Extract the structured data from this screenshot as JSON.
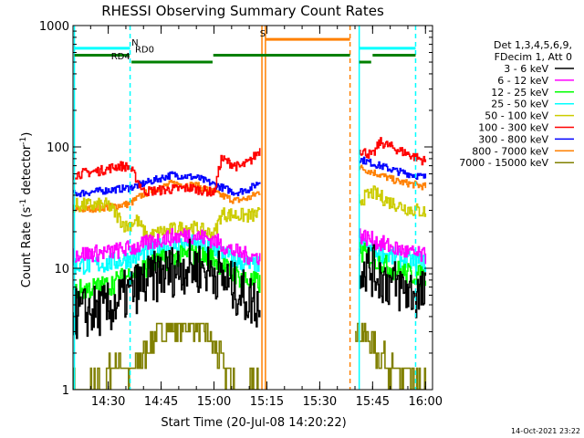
{
  "chart_data": {
    "type": "line",
    "title": "RHESSI Observing Summary Count Rates",
    "xlabel": "Start Time (20-Jul-08 14:20:22)",
    "ylabel_main": "Count Rate (s",
    "ylabel_sup1": "-1",
    "ylabel_mid": " detector",
    "ylabel_sup2": "-1",
    "ylabel_end": ")",
    "yscale": "log",
    "ylim": [
      1,
      1000
    ],
    "xlim_minutes": [
      860,
      962
    ],
    "x_tick_minutes": [
      870,
      885,
      900,
      915,
      930,
      945,
      960
    ],
    "x_tick_labels": [
      "14:30",
      "14:45",
      "15:00",
      "15:15",
      "15:30",
      "15:45",
      "16:00"
    ],
    "y_tick_values": [
      1,
      10,
      100,
      1000
    ],
    "y_tick_labels": [
      "1",
      "10",
      "100",
      "1000"
    ],
    "legend_header": [
      "Det 1,3,4,5,6,9,",
      "FDecim 1, Att 0"
    ],
    "timestamp": "14-Oct-2021 23:22",
    "series": [
      {
        "name": "3 - 6 keV",
        "color": "#000000",
        "seg1": [
          [
            860,
            4.2
          ],
          [
            870,
            4.6
          ],
          [
            878,
            7
          ],
          [
            885,
            9
          ],
          [
            893,
            10.5
          ],
          [
            900,
            9.5
          ],
          [
            905,
            7
          ],
          [
            910,
            5.5
          ],
          [
            913,
            5
          ]
        ],
        "seg2": [
          [
            941,
            11
          ],
          [
            945,
            9.5
          ],
          [
            950,
            7.5
          ],
          [
            955,
            6.5
          ],
          [
            960,
            5.8
          ]
        ]
      },
      {
        "name": "6 - 12 keV",
        "color": "#ff00ff",
        "seg1": [
          [
            860,
            13
          ],
          [
            870,
            13.5
          ],
          [
            878,
            15
          ],
          [
            885,
            17.5
          ],
          [
            893,
            19
          ],
          [
            900,
            17
          ],
          [
            905,
            14
          ],
          [
            910,
            12.5
          ],
          [
            913,
            12.5
          ]
        ],
        "seg2": [
          [
            941,
            19
          ],
          [
            945,
            17
          ],
          [
            950,
            15
          ],
          [
            955,
            13.5
          ],
          [
            960,
            12.5
          ]
        ]
      },
      {
        "name": "12 - 25 keV",
        "color": "#00ff00",
        "seg1": [
          [
            860,
            6.5
          ],
          [
            870,
            7.2
          ],
          [
            878,
            9.5
          ],
          [
            885,
            11.5
          ],
          [
            893,
            13
          ],
          [
            900,
            12
          ],
          [
            905,
            9
          ],
          [
            910,
            7.8
          ],
          [
            913,
            7.5
          ]
        ],
        "seg2": [
          [
            941,
            14
          ],
          [
            945,
            12
          ],
          [
            950,
            10
          ],
          [
            955,
            9
          ],
          [
            960,
            8.5
          ]
        ]
      },
      {
        "name": "25 - 50 keV",
        "color": "#00ffff",
        "seg1": [
          [
            860,
            10.5
          ],
          [
            870,
            11
          ],
          [
            878,
            12.5
          ],
          [
            885,
            15
          ],
          [
            893,
            16
          ],
          [
            900,
            14.5
          ],
          [
            905,
            12
          ],
          [
            910,
            10.5
          ],
          [
            913,
            10.5
          ]
        ],
        "seg2": [
          [
            941,
            16
          ],
          [
            945,
            14
          ],
          [
            950,
            12.5
          ],
          [
            955,
            11.5
          ],
          [
            960,
            11
          ]
        ]
      },
      {
        "name": "50 - 100 keV",
        "color": "#cccc00",
        "seg1": [
          [
            860,
            33
          ],
          [
            870,
            33
          ],
          [
            875,
            22
          ],
          [
            878,
            25
          ],
          [
            881,
            18
          ],
          [
            885,
            20
          ],
          [
            893,
            22
          ],
          [
            900,
            19
          ],
          [
            902,
            28
          ],
          [
            910,
            27
          ],
          [
            913,
            28
          ]
        ],
        "seg2": [
          [
            941,
            36
          ],
          [
            945,
            42
          ],
          [
            950,
            35
          ],
          [
            955,
            31
          ],
          [
            960,
            29
          ]
        ]
      },
      {
        "name": "100 - 300 keV",
        "color": "#ff0000",
        "seg1": [
          [
            860,
            59
          ],
          [
            868,
            64
          ],
          [
            873,
            70
          ],
          [
            876,
            68
          ],
          [
            880,
            43
          ],
          [
            885,
            44
          ],
          [
            893,
            46
          ],
          [
            900,
            42
          ],
          [
            902,
            80
          ],
          [
            907,
            68
          ],
          [
            910,
            75
          ],
          [
            913,
            95
          ]
        ],
        "seg2": [
          [
            941,
            95
          ],
          [
            945,
            85
          ],
          [
            947,
            110
          ],
          [
            952,
            95
          ],
          [
            960,
            76
          ]
        ]
      },
      {
        "name": "300 - 800 keV",
        "color": "#0000ff",
        "seg1": [
          [
            860,
            41
          ],
          [
            870,
            44
          ],
          [
            876,
            46
          ],
          [
            880,
            50
          ],
          [
            888,
            59
          ],
          [
            895,
            56
          ],
          [
            900,
            49
          ],
          [
            906,
            42
          ],
          [
            910,
            45
          ],
          [
            913,
            52
          ]
        ],
        "seg2": [
          [
            941,
            80
          ],
          [
            945,
            73
          ],
          [
            952,
            63
          ],
          [
            960,
            56
          ]
        ]
      },
      {
        "name": "800 - 7000 keV",
        "color": "#ff8000",
        "seg1": [
          [
            860,
            30
          ],
          [
            870,
            32
          ],
          [
            876,
            34
          ],
          [
            880,
            41
          ],
          [
            888,
            50
          ],
          [
            895,
            48
          ],
          [
            900,
            42
          ],
          [
            906,
            36
          ],
          [
            910,
            38
          ],
          [
            913,
            43
          ]
        ],
        "seg2": [
          [
            941,
            68
          ],
          [
            945,
            62
          ],
          [
            952,
            52
          ],
          [
            960,
            47
          ]
        ]
      },
      {
        "name": "7000 - 15000 keV",
        "color": "#808000",
        "seg1": [
          [
            860,
            1
          ],
          [
            869,
            1
          ],
          [
            870,
            1.5
          ],
          [
            874,
            1.7
          ],
          [
            876,
            1.3
          ],
          [
            880,
            2
          ],
          [
            884,
            3
          ],
          [
            888,
            3.3
          ],
          [
            893,
            3.6
          ],
          [
            897,
            3.2
          ],
          [
            900,
            2.2
          ],
          [
            903,
            1.5
          ],
          [
            907,
            1
          ],
          [
            913,
            1
          ]
        ],
        "seg2": [
          [
            940,
            3.5
          ],
          [
            944,
            2.5
          ],
          [
            948,
            1.8
          ],
          [
            952,
            1.3
          ],
          [
            956,
            1.1
          ],
          [
            960,
            1
          ]
        ]
      }
    ],
    "vertical_markers": [
      {
        "minute": 860.4,
        "color": "#00ffff",
        "style": "solid"
      },
      {
        "minute": 876.2,
        "color": "#00ffff",
        "style": "dashed"
      },
      {
        "minute": 913.6,
        "color": "#ff8000",
        "style": "solid"
      },
      {
        "minute": 914.6,
        "color": "#ff8000",
        "style": "solid"
      },
      {
        "minute": 938.6,
        "color": "#ff8000",
        "style": "dashed"
      },
      {
        "minute": 941.2,
        "color": "#00ffff",
        "style": "solid"
      },
      {
        "minute": 957.2,
        "color": "#00ffff",
        "style": "dashed"
      }
    ],
    "flag_bars": [
      {
        "label": "N",
        "color": "#00ffff",
        "level": 650,
        "segments": [
          [
            860.4,
            876.2
          ],
          [
            941.2,
            957.2
          ]
        ],
        "label_minute": 876.6
      },
      {
        "label": "S",
        "color": "#ff8000",
        "level": 770,
        "segments": [
          [
            914.6,
            938.6
          ]
        ],
        "label_minute": 913.0
      },
      {
        "label": "RD0",
        "color": "#008000",
        "level": 570,
        "segments": [
          [
            860.4,
            876.0
          ],
          [
            899.8,
            938.6
          ],
          [
            945,
            957.2
          ]
        ],
        "label_minute": 877.6
      },
      {
        "label": "RD4",
        "color": "#008000",
        "level": 500,
        "segments": [
          [
            876.6,
            899.6
          ],
          [
            941.2,
            944.6
          ]
        ],
        "label_minute": 870.8
      }
    ]
  }
}
